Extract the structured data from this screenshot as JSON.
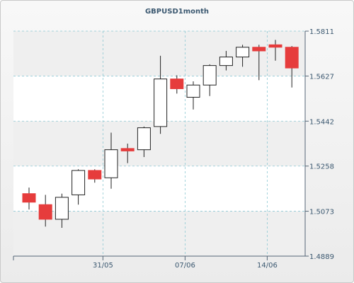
{
  "chart_data": {
    "type": "candlestick",
    "title": "GBPUSD1month",
    "y_ticks": [
      "1.5811",
      "1.5627",
      "1.5442",
      "1.5258",
      "1.5073",
      "1.4889"
    ],
    "ylim": [
      1.4889,
      1.5811
    ],
    "x_tick_labels": [
      {
        "label": "31/05",
        "index": 4.5
      },
      {
        "label": "07/06",
        "index": 9.5
      },
      {
        "label": "14/06",
        "index": 14.5
      }
    ],
    "colors": {
      "up": "#ffffff",
      "down": "#e63c3c",
      "grid": "#8cc8d2",
      "axis": "#556677"
    },
    "candles": [
      {
        "open": 1.5145,
        "high": 1.517,
        "low": 1.508,
        "close": 1.511
      },
      {
        "open": 1.51,
        "high": 1.514,
        "low": 1.501,
        "close": 1.504
      },
      {
        "open": 1.504,
        "high": 1.5145,
        "low": 1.5005,
        "close": 1.513
      },
      {
        "open": 1.514,
        "high": 1.5245,
        "low": 1.51,
        "close": 1.524
      },
      {
        "open": 1.524,
        "high": 1.5245,
        "low": 1.519,
        "close": 1.5205
      },
      {
        "open": 1.521,
        "high": 1.5395,
        "low": 1.5165,
        "close": 1.5325
      },
      {
        "open": 1.533,
        "high": 1.535,
        "low": 1.527,
        "close": 1.532
      },
      {
        "open": 1.5325,
        "high": 1.542,
        "low": 1.5295,
        "close": 1.5415
      },
      {
        "open": 1.542,
        "high": 1.571,
        "low": 1.539,
        "close": 1.5615
      },
      {
        "open": 1.5615,
        "high": 1.563,
        "low": 1.5555,
        "close": 1.5575
      },
      {
        "open": 1.554,
        "high": 1.5605,
        "low": 1.549,
        "close": 1.559
      },
      {
        "open": 1.559,
        "high": 1.5675,
        "low": 1.5545,
        "close": 1.567
      },
      {
        "open": 1.567,
        "high": 1.573,
        "low": 1.565,
        "close": 1.5705
      },
      {
        "open": 1.5705,
        "high": 1.5755,
        "low": 1.5665,
        "close": 1.5745
      },
      {
        "open": 1.5745,
        "high": 1.5755,
        "low": 1.561,
        "close": 1.573
      },
      {
        "open": 1.5755,
        "high": 1.5775,
        "low": 1.569,
        "close": 1.5745
      },
      {
        "open": 1.5745,
        "high": 1.575,
        "low": 1.558,
        "close": 1.566
      }
    ]
  }
}
